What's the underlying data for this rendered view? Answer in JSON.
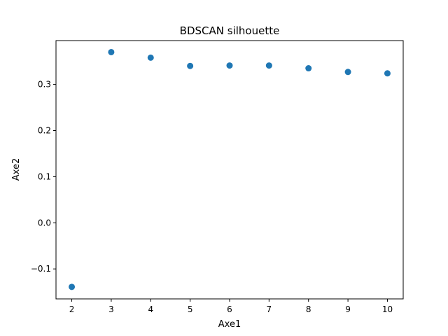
{
  "chart_data": {
    "type": "scatter",
    "title": "BDSCAN silhouette",
    "xlabel": "Axe1",
    "ylabel": "Axe2",
    "x": [
      2,
      3,
      4,
      5,
      6,
      7,
      8,
      9,
      10
    ],
    "y": [
      -0.139,
      0.37,
      0.358,
      0.34,
      0.341,
      0.341,
      0.335,
      0.327,
      0.324
    ],
    "xlim": [
      1.6,
      10.4
    ],
    "ylim": [
      -0.165,
      0.395
    ],
    "xticks": [
      2,
      3,
      4,
      5,
      6,
      7,
      8,
      9,
      10
    ],
    "yticks": [
      -0.1,
      0.0,
      0.1,
      0.2,
      0.3
    ],
    "ytick_labels": [
      "−0.1",
      "0.0",
      "0.1",
      "0.2",
      "0.3"
    ],
    "marker_color": "#1f77b4",
    "grid": false,
    "legend": "none"
  }
}
